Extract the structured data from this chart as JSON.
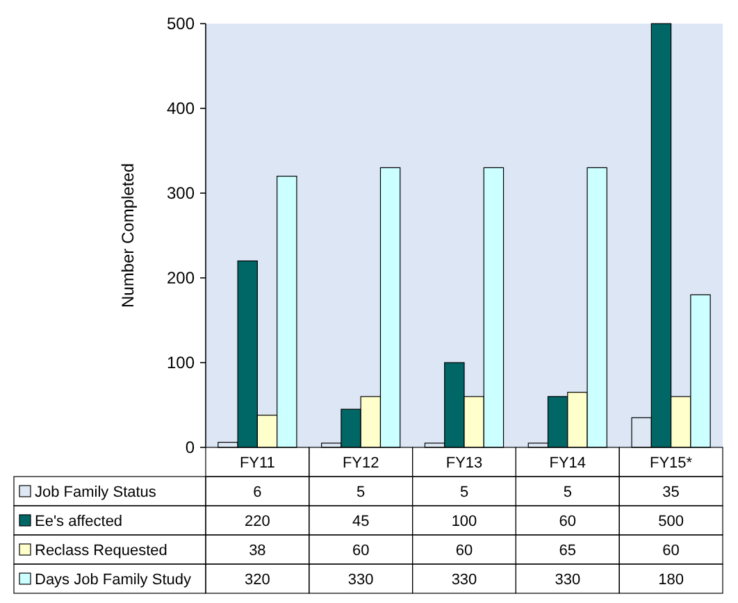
{
  "chart_data": {
    "type": "bar",
    "ylabel": "Number Completed",
    "categories": [
      "FY11",
      "FY12",
      "FY13",
      "FY14",
      "FY15*"
    ],
    "series": [
      {
        "name": "Job Family Status",
        "color": "#dde8f4",
        "values": [
          6,
          5,
          5,
          5,
          35
        ]
      },
      {
        "name": "Ee's affected",
        "color": "#006666",
        "values": [
          220,
          45,
          100,
          60,
          500
        ]
      },
      {
        "name": "Reclass Requested",
        "color": "#ffffcc",
        "values": [
          38,
          60,
          60,
          65,
          60
        ]
      },
      {
        "name": "Days Job Family Study",
        "color": "#ccffff",
        "values": [
          320,
          330,
          330,
          330,
          180
        ]
      }
    ],
    "ylim": [
      0,
      500
    ],
    "yticks": [
      0,
      100,
      200,
      300,
      400,
      500
    ],
    "grid": false,
    "legend": "bottom left",
    "data_labels": true
  }
}
